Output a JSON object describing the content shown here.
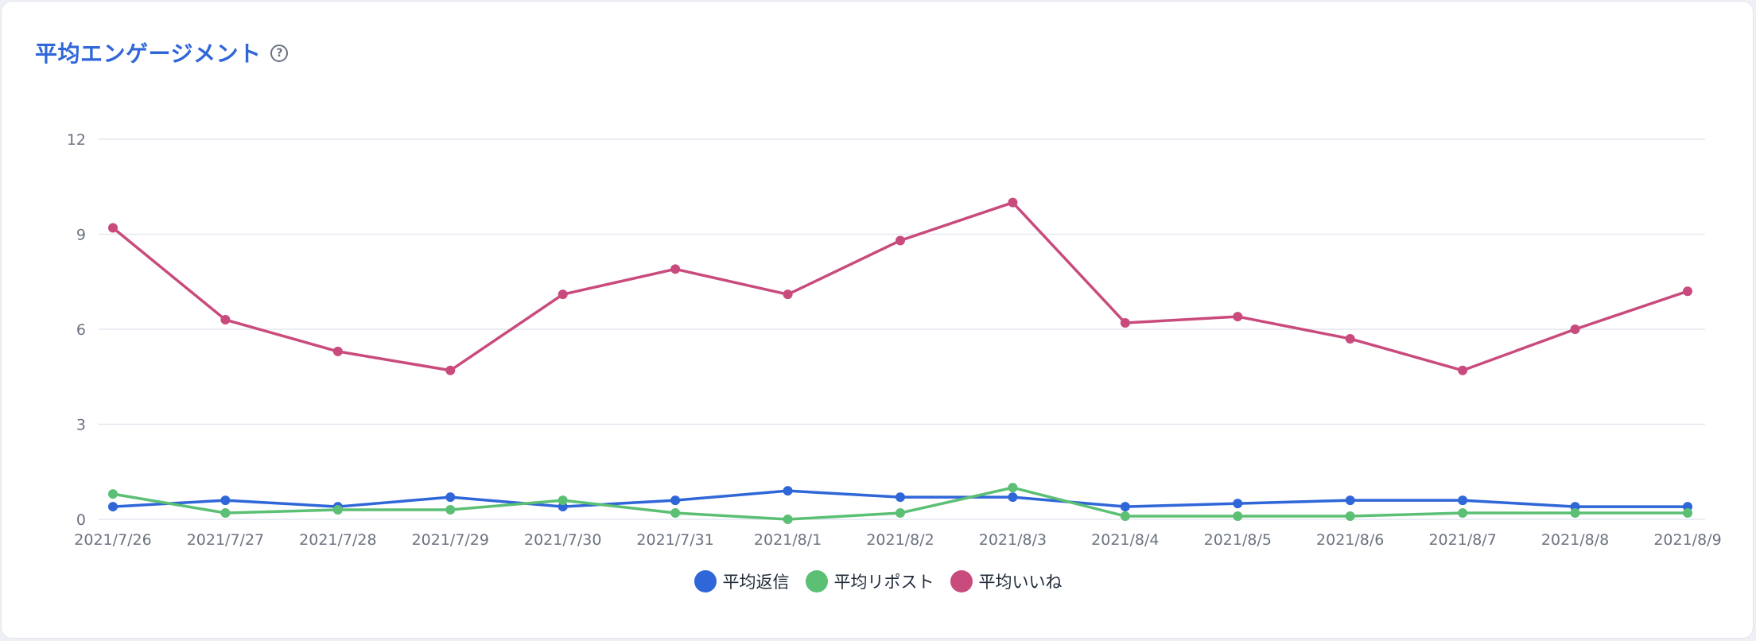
{
  "title": "平均エンゲージメント",
  "help_icon": "question-circle-icon",
  "chart_data": {
    "type": "line",
    "categories": [
      "2021/7/26",
      "2021/7/27",
      "2021/7/28",
      "2021/7/29",
      "2021/7/30",
      "2021/7/31",
      "2021/8/1",
      "2021/8/2",
      "2021/8/3",
      "2021/8/4",
      "2021/8/5",
      "2021/8/6",
      "2021/8/7",
      "2021/8/8",
      "2021/8/9"
    ],
    "ylim": [
      0,
      12
    ],
    "yticks": [
      0,
      3,
      6,
      9,
      12
    ],
    "grid": true,
    "legend_position": "bottom-center",
    "series": [
      {
        "name": "平均返信",
        "color": "#2f66d8",
        "values": [
          0.4,
          0.6,
          0.4,
          0.7,
          0.4,
          0.6,
          0.9,
          0.7,
          0.7,
          0.4,
          0.5,
          0.6,
          0.6,
          0.4,
          0.4
        ]
      },
      {
        "name": "平均リポスト",
        "color": "#5bbf74",
        "values": [
          0.8,
          0.2,
          0.3,
          0.3,
          0.6,
          0.2,
          0.0,
          0.2,
          1.0,
          0.1,
          0.1,
          0.1,
          0.2,
          0.2,
          0.2
        ]
      },
      {
        "name": "平均いいね",
        "color": "#c94b7d",
        "values": [
          9.2,
          6.3,
          5.3,
          4.7,
          7.1,
          7.9,
          7.1,
          8.8,
          10.0,
          6.2,
          6.4,
          5.7,
          4.7,
          6.0,
          7.2
        ]
      }
    ]
  }
}
